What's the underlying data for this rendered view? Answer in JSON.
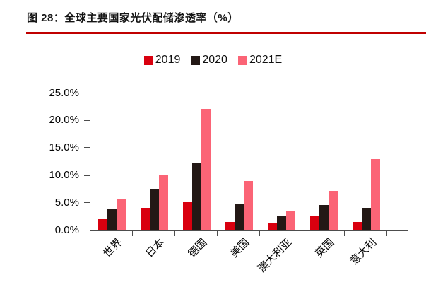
{
  "figure": {
    "title": "图 28：全球主要国家光伏配储渗透率（%）",
    "underline_color": "#C00000"
  },
  "chart_data": {
    "type": "bar",
    "title": "全球主要国家光伏配储渗透率（%）",
    "categories": [
      "世界",
      "日本",
      "德国",
      "美国",
      "澳大利亚",
      "英国",
      "意大利"
    ],
    "series": [
      {
        "name": "2019",
        "color": "#D9000F",
        "values": [
          2.0,
          4.0,
          5.1,
          1.5,
          1.4,
          2.6,
          1.5
        ]
      },
      {
        "name": "2020",
        "color": "#231815",
        "values": [
          3.8,
          7.5,
          12.2,
          4.7,
          2.5,
          4.6,
          4.0
        ]
      },
      {
        "name": "2021E",
        "color": "#FB6476",
        "values": [
          5.6,
          10.0,
          22.1,
          9.0,
          3.6,
          7.2,
          13.0
        ]
      }
    ],
    "ylim": [
      0,
      25
    ],
    "ytick_step": 5,
    "ytick_labels": [
      "0.0%",
      "5.0%",
      "10.0%",
      "15.0%",
      "20.0%",
      "25.0%"
    ],
    "xlabel": "",
    "ylabel": "",
    "grid": false,
    "legend_position": "top",
    "axis_color": "#4d4d4d"
  }
}
